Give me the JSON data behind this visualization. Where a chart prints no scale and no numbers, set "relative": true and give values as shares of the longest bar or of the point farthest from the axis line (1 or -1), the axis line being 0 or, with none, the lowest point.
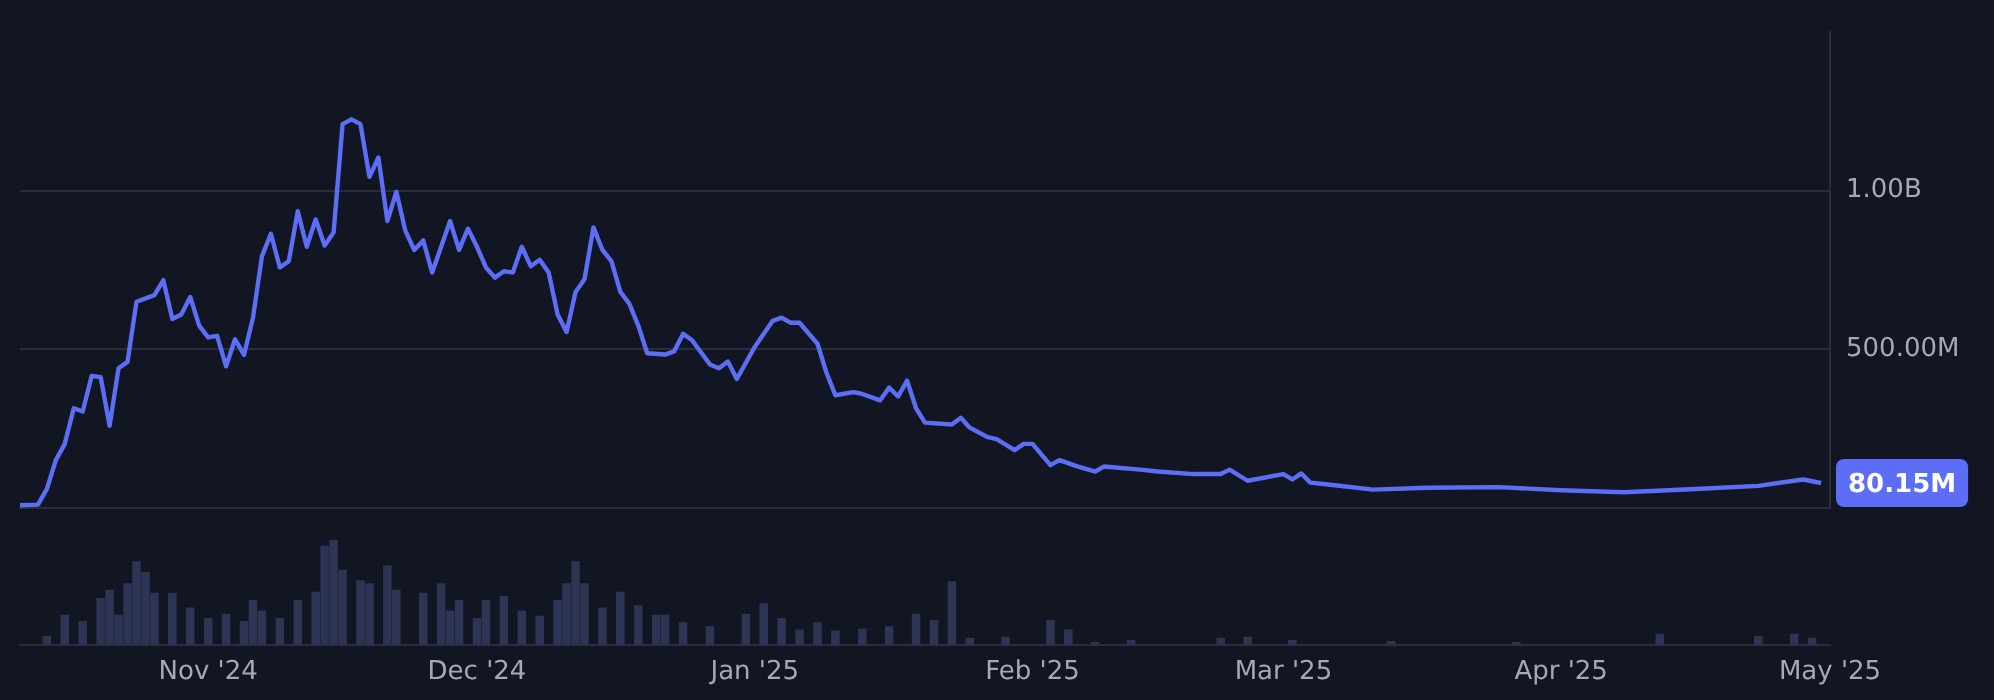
{
  "chart_data": [
    {
      "type": "line",
      "color": "#5b6ef5",
      "grid": "y",
      "legend": false,
      "tick_labels": "y",
      "marker": "none",
      "x": [
        "2024-10-11",
        "2024-10-13",
        "2024-10-14",
        "2024-10-15",
        "2024-10-16",
        "2024-10-17",
        "2024-10-18",
        "2024-10-19",
        "2024-10-20",
        "2024-10-21",
        "2024-10-22",
        "2024-10-23",
        "2024-10-24",
        "2024-10-26",
        "2024-10-27",
        "2024-10-28",
        "2024-10-29",
        "2024-10-30",
        "2024-10-31",
        "2024-11-01",
        "2024-11-02",
        "2024-11-03",
        "2024-11-04",
        "2024-11-05",
        "2024-11-06",
        "2024-11-07",
        "2024-11-08",
        "2024-11-09",
        "2024-11-10",
        "2024-11-11",
        "2024-11-12",
        "2024-11-13",
        "2024-11-14",
        "2024-11-15",
        "2024-11-16",
        "2024-11-17",
        "2024-11-18",
        "2024-11-19",
        "2024-11-20",
        "2024-11-21",
        "2024-11-22",
        "2024-11-23",
        "2024-11-24",
        "2024-11-25",
        "2024-11-26",
        "2024-11-27",
        "2024-11-28",
        "2024-11-29",
        "2024-11-30",
        "2024-12-01",
        "2024-12-02",
        "2024-12-03",
        "2024-12-04",
        "2024-12-05",
        "2024-12-06",
        "2024-12-07",
        "2024-12-08",
        "2024-12-09",
        "2024-12-10",
        "2024-12-11",
        "2024-12-12",
        "2024-12-13",
        "2024-12-14",
        "2024-12-15",
        "2024-12-16",
        "2024-12-17",
        "2024-12-18",
        "2024-12-19",
        "2024-12-20",
        "2024-12-22",
        "2024-12-23",
        "2024-12-24",
        "2024-12-25",
        "2024-12-27",
        "2024-12-28",
        "2024-12-29",
        "2024-12-30",
        "2025-01-01",
        "2025-01-03",
        "2025-01-04",
        "2025-01-05",
        "2025-01-06",
        "2025-01-08",
        "2025-01-09",
        "2025-01-10",
        "2025-01-12",
        "2025-01-13",
        "2025-01-15",
        "2025-01-16",
        "2025-01-17",
        "2025-01-18",
        "2025-01-19",
        "2025-01-20",
        "2025-01-23",
        "2025-01-24",
        "2025-01-25",
        "2025-01-27",
        "2025-01-28",
        "2025-01-30",
        "2025-01-31",
        "2025-02-01",
        "2025-02-03",
        "2025-02-04",
        "2025-02-06",
        "2025-02-08",
        "2025-02-09",
        "2025-02-13",
        "2025-02-15",
        "2025-02-19",
        "2025-02-22",
        "2025-02-23",
        "2025-02-25",
        "2025-03-01",
        "2025-03-02",
        "2025-03-03",
        "2025-03-04",
        "2025-03-06",
        "2025-03-11",
        "2025-03-17",
        "2025-03-25",
        "2025-04-01",
        "2025-04-08",
        "2025-04-16",
        "2025-04-23",
        "2025-04-28",
        "2025-04-30"
      ],
      "values": [
        10000000,
        12000000,
        61000000,
        152000000,
        203000000,
        315000000,
        305000000,
        417000000,
        413000000,
        260000000,
        441000000,
        461000000,
        650000000,
        671000000,
        718000000,
        596000000,
        610000000,
        665000000,
        575000000,
        538000000,
        543000000,
        447000000,
        532000000,
        483000000,
        600000000,
        793000000,
        864000000,
        758000000,
        778000000,
        935000000,
        823000000,
        909000000,
        827000000,
        868000000,
        1209000000,
        1224000000,
        1209000000,
        1043000000,
        1104000000,
        904000000,
        996000000,
        874000000,
        813000000,
        843000000,
        742000000,
        823000000,
        904000000,
        813000000,
        880000000,
        823000000,
        758000000,
        726000000,
        746000000,
        742000000,
        823000000,
        762000000,
        782000000,
        742000000,
        610000000,
        555000000,
        681000000,
        721000000,
        884000000,
        813000000,
        778000000,
        681000000,
        644000000,
        575000000,
        488000000,
        484000000,
        494000000,
        549000000,
        529000000,
        453000000,
        441000000,
        462000000,
        407000000,
        508000000,
        590000000,
        600000000,
        584000000,
        584000000,
        518000000,
        427000000,
        356000000,
        366000000,
        360000000,
        340000000,
        380000000,
        352000000,
        402000000,
        315000000,
        270000000,
        264000000,
        285000000,
        254000000,
        224000000,
        218000000,
        183000000,
        203000000,
        203000000,
        136000000,
        152000000,
        132000000,
        116000000,
        132000000,
        122000000,
        116000000,
        108000000,
        108000000,
        122000000,
        87000000,
        108000000,
        91000000,
        110000000,
        81000000,
        75000000,
        59000000,
        65000000,
        67000000,
        57000000,
        51000000,
        61000000,
        71000000,
        91000000,
        80000000
      ],
      "xlim": [
        "2024-10-11",
        "2025-05-01"
      ],
      "ylim": [
        0,
        1500000000
      ],
      "yticks": [
        {
          "value": 0,
          "label": null
        },
        {
          "value": 500000000,
          "label": "500.00M"
        },
        {
          "value": 1000000000,
          "label": "1.00B"
        }
      ],
      "annotations": [
        "80.15M"
      ]
    },
    {
      "type": "bar",
      "relative": true,
      "color": "#2e3454",
      "grid": false,
      "legend": false,
      "tick_labels": "x",
      "x": [
        "2024-10-14",
        "2024-10-16",
        "2024-10-18",
        "2024-10-20",
        "2024-10-21",
        "2024-10-22",
        "2024-10-23",
        "2024-10-24",
        "2024-10-25",
        "2024-10-26",
        "2024-10-28",
        "2024-10-30",
        "2024-11-01",
        "2024-11-03",
        "2024-11-05",
        "2024-11-06",
        "2024-11-07",
        "2024-11-09",
        "2024-11-11",
        "2024-11-13",
        "2024-11-14",
        "2024-11-15",
        "2024-11-16",
        "2024-11-18",
        "2024-11-19",
        "2024-11-21",
        "2024-11-22",
        "2024-11-25",
        "2024-11-27",
        "2024-11-28",
        "2024-11-29",
        "2024-12-01",
        "2024-12-02",
        "2024-12-04",
        "2024-12-06",
        "2024-12-08",
        "2024-12-10",
        "2024-12-11",
        "2024-12-12",
        "2024-12-13",
        "2024-12-15",
        "2024-12-17",
        "2024-12-19",
        "2024-12-21",
        "2024-12-22",
        "2024-12-24",
        "2024-12-27",
        "2024-12-31",
        "2025-01-02",
        "2025-01-04",
        "2025-01-06",
        "2025-01-08",
        "2025-01-10",
        "2025-01-13",
        "2025-01-16",
        "2025-01-19",
        "2025-01-21",
        "2025-01-23",
        "2025-01-25",
        "2025-01-29",
        "2025-02-03",
        "2025-02-05",
        "2025-02-08",
        "2025-02-12",
        "2025-02-22",
        "2025-02-25",
        "2025-03-02",
        "2025-03-13",
        "2025-03-27",
        "2025-04-12",
        "2025-04-23",
        "2025-04-27",
        "2025-04-29"
      ],
      "values": [
        0.08,
        0.28,
        0.22,
        0.44,
        0.52,
        0.28,
        0.58,
        0.79,
        0.69,
        0.49,
        0.49,
        0.35,
        0.25,
        0.29,
        0.22,
        0.42,
        0.32,
        0.25,
        0.42,
        0.5,
        0.94,
        1,
        0.71,
        0.61,
        0.58,
        0.75,
        0.52,
        0.49,
        0.58,
        0.32,
        0.42,
        0.25,
        0.42,
        0.46,
        0.32,
        0.27,
        0.42,
        0.58,
        0.79,
        0.58,
        0.35,
        0.5,
        0.37,
        0.28,
        0.28,
        0.21,
        0.17,
        0.29,
        0.39,
        0.25,
        0.14,
        0.21,
        0.13,
        0.15,
        0.17,
        0.29,
        0.23,
        0.6,
        0.06,
        0.07,
        0.23,
        0.14,
        0.02,
        0.04,
        0.06,
        0.07,
        0.04,
        0.03,
        0.02,
        0.1,
        0.08,
        0.1,
        0.06
      ],
      "xlim": [
        "2024-10-11",
        "2025-05-01"
      ],
      "xticks": [
        {
          "value": "2024-11-01",
          "label": "Nov '24"
        },
        {
          "value": "2024-12-01",
          "label": "Dec '24"
        },
        {
          "value": "2025-01-01",
          "label": "Jan '25"
        },
        {
          "value": "2025-02-01",
          "label": "Feb '25"
        },
        {
          "value": "2025-03-01",
          "label": "Mar '25"
        },
        {
          "value": "2025-04-01",
          "label": "Apr '25"
        },
        {
          "value": "2025-05-01",
          "label": "May '25"
        }
      ]
    }
  ]
}
